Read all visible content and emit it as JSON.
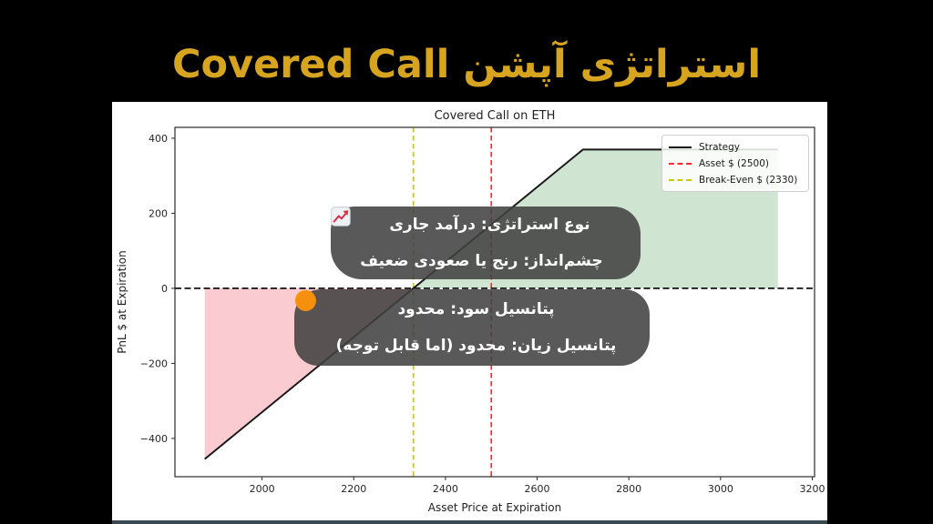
{
  "page": {
    "background": "#000000",
    "title": "استراتژی آپشن Covered Call",
    "title_color": "#d7a41f"
  },
  "chart_data": {
    "type": "line",
    "title": "Covered Call on ETH",
    "xlabel": "Asset Price at Expiration",
    "ylabel": "PnL $ at Expiration",
    "xlim": [
      1810,
      3205
    ],
    "ylim": [
      -502,
      429
    ],
    "xticks": [
      2000,
      2200,
      2400,
      2600,
      2800,
      3000,
      3200
    ],
    "yticks": [
      -400,
      -200,
      0,
      200,
      400
    ],
    "grid": false,
    "series": [
      {
        "name": "Strategy",
        "color": "#1a1a1a",
        "width": 2,
        "points": [
          [
            1875,
            -455
          ],
          [
            2330,
            0
          ],
          [
            2700,
            370
          ],
          [
            3125,
            370
          ]
        ]
      }
    ],
    "hlines": [
      {
        "name": "zero-line",
        "y": 0,
        "color": "#000000",
        "dash": "7 3.5",
        "width": 1.6
      }
    ],
    "vlines": [
      {
        "name": "asset-price-line",
        "x": 2500,
        "color": "#ff2a2a",
        "dash": "5.5 3.5",
        "width": 1.7,
        "label": "Asset $ (2500)"
      },
      {
        "name": "break-even-line",
        "x": 2330,
        "color": "#c9c900",
        "dash": "5.5 3.5",
        "width": 1.7,
        "label": "Break-Even $ (2330)"
      }
    ],
    "regions": [
      {
        "name": "loss-region",
        "color": "#f06070",
        "opacity": 0.33,
        "polygon": [
          [
            1875,
            0
          ],
          [
            2330,
            0
          ],
          [
            1875,
            -455
          ]
        ]
      },
      {
        "name": "profit-region",
        "color": "#4f9d55",
        "opacity": 0.27,
        "polygon": [
          [
            2330,
            0
          ],
          [
            2700,
            370
          ],
          [
            3125,
            370
          ],
          [
            3125,
            0
          ]
        ]
      }
    ],
    "legend": {
      "position": "top-right",
      "entries": [
        {
          "label": "Strategy",
          "color": "#1a1a1a",
          "dashed": false
        },
        {
          "label": "Asset $ (2500)",
          "color": "#ff2a2a",
          "dashed": true
        },
        {
          "label": "Break-Even $ (2330)",
          "color": "#c9c900",
          "dashed": true
        }
      ]
    },
    "key_values": {
      "asset_price": 2500,
      "break_even": 2330,
      "strike": 2700,
      "max_profit": 370,
      "min_pnl": -455
    }
  },
  "annotations": [
    {
      "id": "strategy-info",
      "lines": [
        {
          "icon": "coin-icon",
          "icon_side": "left",
          "text": "نوع استراتژی: درآمد جاری"
        },
        {
          "icon": "chart-increasing-icon",
          "icon_side": "right",
          "text": "چشم‌انداز: رنج یا صعودی ضعیف"
        }
      ]
    },
    {
      "id": "potential-info",
      "lines": [
        {
          "icon": "yellow-circle-icon",
          "icon_side": "left",
          "text": "پتانسیل سود: محدود"
        },
        {
          "icon": "orange-circle-icon",
          "icon_side": "left",
          "text": "پتانسیل زیان: محدود (اما قابل توجه)"
        }
      ]
    }
  ],
  "bottom_bar_color": "#3a4a52"
}
